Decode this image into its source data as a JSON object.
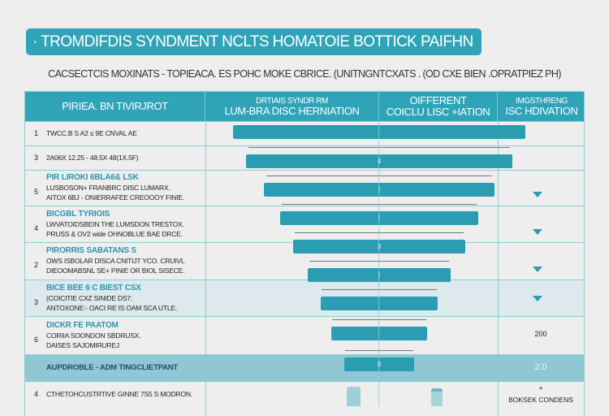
{
  "title": "· TROMDIFDIS SYNDMENT NCLTS HOMATOIE BOTTICK PAIFHN",
  "subtitle": "CACSECTCIS MOXINATS - TOPIEACA. ES POHC MOKE CBRICE. (UNITNGNTCXATS . (OD CXE BIEN .OPRATPIEZ PH)",
  "header": {
    "col1": "PIRIEA. BN TIVIRJROT",
    "col2_top": "DRTIAIS SYNDR RM",
    "col2": "LUM-BRA DISC HERNIATION",
    "col3_top": "OIFFERENT",
    "col3": "COICLU LISC +IATION",
    "col4_top": "IMGSTHRENG",
    "col4": "ISC HDIVATION"
  },
  "rows": [
    {
      "num": "1",
      "heading": "",
      "lines": [
        "TWCC.B S A2 ≤ 9E CNVAL AE"
      ]
    },
    {
      "num": "3",
      "heading": "",
      "lines": [
        "2A06X 12.25 - 48.5X 48(1X.5F)"
      ]
    },
    {
      "num": "5",
      "heading": "PIR LIROKI 6BLA6& LSK",
      "lines": [
        "LUSBOSON+ FRANBRC DISC LUMARX.",
        "AITOX 6BJ - ONIERRAFEE CREOOOY FINIE."
      ]
    },
    {
      "num": "4",
      "heading": "BICGBL TYRIOIS",
      "lines": [
        "LWVATOIDSBEIN THE LUMSDON TRESTOX.",
        "PRUSS & OV2 wide OHNOBLUE BAE DRCE."
      ]
    },
    {
      "num": "2",
      "heading": "PIRORRIS SABATANS S",
      "lines": [
        "OWS ISBOLAR DISCA CNITIJT YCO. CRUIVL",
        "DIEOOMABSNL SE+ PINIE OR BIOL SISECE."
      ]
    },
    {
      "num": "3",
      "heading": "BICE BEE 6 C BIEST CSX",
      "lines": [
        "(COICITIE CXZ SINIDE DS7:",
        "ANTOXONE:- OACI RE IS OAM SCA UTLE."
      ]
    },
    {
      "num": "6",
      "heading": "DICKR FE PAATOM",
      "lines": [
        "CORIIA SOONDON SBDRUSX.",
        "DAISES SAJOMIRUREJ"
      ]
    },
    {
      "num": "",
      "heading": "",
      "lines": [
        "AUPDROBLE - ADM TINGCLIETPANT"
      ]
    },
    {
      "num": "4",
      "heading": "",
      "lines": [
        "CTHETOHCUSTRTIVE GINNE 7S5 S MODRON."
      ]
    }
  ],
  "bar_labels": [
    "",
    "4",
    "I",
    "I",
    "3",
    "I",
    "",
    "",
    "8"
  ],
  "funnel_values": [
    100,
    91,
    79,
    68,
    59,
    49,
    40,
    33,
    24
  ],
  "col4": {
    "value_row7": "200",
    "value_row8": "2.0",
    "plus": "+",
    "bottom": "BOKSEK CONDENS"
  },
  "colors": {
    "accent": "#2fa3b8",
    "bar": "#2b9db3",
    "highlight": "#8ec8d4"
  }
}
